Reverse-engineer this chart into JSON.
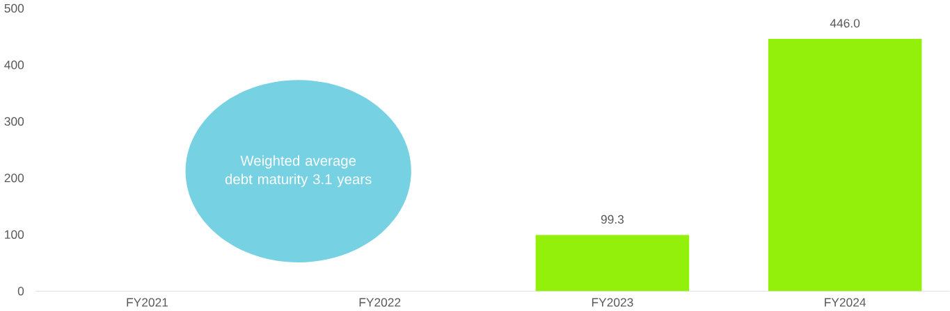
{
  "chart_data": {
    "type": "bar",
    "categories": [
      "FY2021",
      "FY2022",
      "FY2023",
      "FY2024"
    ],
    "values": [
      null,
      null,
      99.3,
      446.0
    ],
    "value_labels": [
      null,
      null,
      "99.3",
      "446.0"
    ],
    "color": "#92f00a",
    "ylim": [
      0,
      500
    ],
    "yticks": [
      0,
      100,
      200,
      300,
      400,
      500
    ],
    "annotations": [
      "Weighted average debt maturity 3.1 years"
    ]
  }
}
